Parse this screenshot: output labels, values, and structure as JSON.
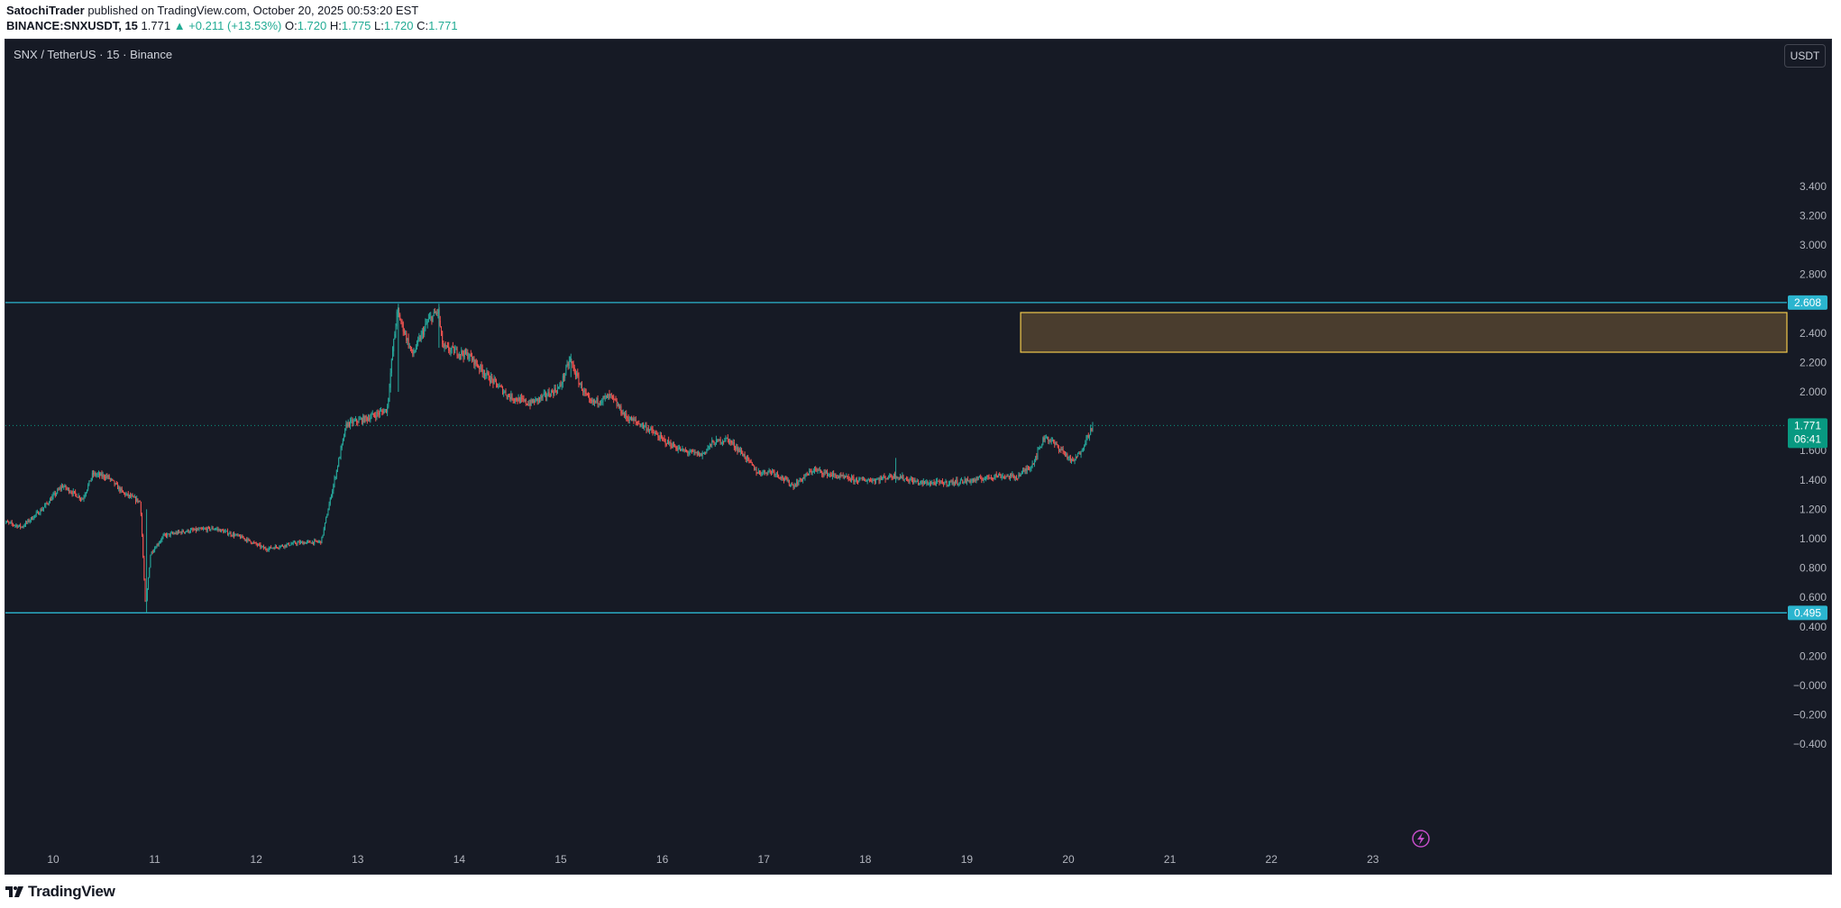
{
  "header": {
    "author": "SatochiTrader",
    "published_text": "published on TradingView.com, October 20, 2025 00:53:20 EST",
    "symbol": "BINANCE:SNXUSDT, 15",
    "last": "1.771",
    "change": "+0.211 (+13.53%)",
    "open_label": "O:",
    "open": "1.720",
    "high_label": "H:",
    "high": "1.775",
    "low_label": "L:",
    "low": "1.720",
    "close_label": "C:",
    "close": "1.771"
  },
  "chart_title": "SNX / TetherUS · 15 · Binance",
  "currency": "USDT",
  "footer": {
    "brand": "TradingView"
  },
  "colors": {
    "background": "#161a25",
    "up": "#26a69a",
    "down": "#ef5350",
    "level_line": "#2bb5cf",
    "zone_fill": "#4a3d2e",
    "zone_border": "#f2c94c",
    "last_price": "#089981",
    "grid": "#1f2331",
    "axis_text": "#b2b5be"
  },
  "icons": [
    "lightning-icon",
    "tradingview-logo-icon",
    "up-triangle-icon"
  ],
  "chart_data": {
    "type": "candlestick",
    "title": "SNX / TetherUS · 15 · Binance",
    "ylim": [
      -0.5,
      3.5
    ],
    "xlim": [
      9.5,
      23.0
    ],
    "y_ticks": [
      3.4,
      3.2,
      3.0,
      2.8,
      2.4,
      2.2,
      2.0,
      1.6,
      1.4,
      1.2,
      1.0,
      0.8,
      0.6,
      0.4,
      0.2,
      0.0,
      -0.2,
      -0.4
    ],
    "y_tick_labels": [
      "3.400",
      "3.200",
      "3.000",
      "2.800",
      "2.400",
      "2.200",
      "2.000",
      "1.600",
      "1.400",
      "1.200",
      "1.000",
      "0.800",
      "0.600",
      "0.400",
      "0.200",
      "−0.000",
      "−0.200",
      "−0.400"
    ],
    "x_ticks": [
      10,
      11,
      12,
      13,
      14,
      15,
      16,
      17,
      18,
      19,
      20,
      21,
      22,
      23
    ],
    "x_tick_labels": [
      "10",
      "11",
      "12",
      "13",
      "14",
      "15",
      "16",
      "17",
      "18",
      "19",
      "20",
      "21",
      "22",
      "23"
    ],
    "grid": false,
    "price_path": [
      [
        9.5,
        1.12
      ],
      [
        9.7,
        1.08
      ],
      [
        9.9,
        1.2
      ],
      [
        10.1,
        1.36
      ],
      [
        10.3,
        1.27
      ],
      [
        10.4,
        1.44
      ],
      [
        10.55,
        1.42
      ],
      [
        10.7,
        1.31
      ],
      [
        10.87,
        1.25
      ],
      [
        10.92,
        0.52
      ],
      [
        10.97,
        0.9
      ],
      [
        11.1,
        1.02
      ],
      [
        11.3,
        1.05
      ],
      [
        11.6,
        1.07
      ],
      [
        11.9,
        1.0
      ],
      [
        12.1,
        0.93
      ],
      [
        12.4,
        0.97
      ],
      [
        12.65,
        0.98
      ],
      [
        12.75,
        1.3
      ],
      [
        12.9,
        1.78
      ],
      [
        13.1,
        1.82
      ],
      [
        13.3,
        1.88
      ],
      [
        13.35,
        2.25
      ],
      [
        13.4,
        2.55
      ],
      [
        13.55,
        2.25
      ],
      [
        13.7,
        2.48
      ],
      [
        13.8,
        2.55
      ],
      [
        13.85,
        2.3
      ],
      [
        14.1,
        2.25
      ],
      [
        14.3,
        2.1
      ],
      [
        14.5,
        1.97
      ],
      [
        14.7,
        1.92
      ],
      [
        14.85,
        1.97
      ],
      [
        15.0,
        2.03
      ],
      [
        15.1,
        2.22
      ],
      [
        15.2,
        2.05
      ],
      [
        15.3,
        1.92
      ],
      [
        15.5,
        1.97
      ],
      [
        15.65,
        1.83
      ],
      [
        15.85,
        1.76
      ],
      [
        16.0,
        1.68
      ],
      [
        16.2,
        1.6
      ],
      [
        16.4,
        1.57
      ],
      [
        16.5,
        1.65
      ],
      [
        16.65,
        1.68
      ],
      [
        16.8,
        1.58
      ],
      [
        16.95,
        1.45
      ],
      [
        17.1,
        1.46
      ],
      [
        17.3,
        1.36
      ],
      [
        17.5,
        1.47
      ],
      [
        17.7,
        1.43
      ],
      [
        17.9,
        1.4
      ],
      [
        18.1,
        1.4
      ],
      [
        18.3,
        1.43
      ],
      [
        18.55,
        1.38
      ],
      [
        18.8,
        1.38
      ],
      [
        19.1,
        1.4
      ],
      [
        19.3,
        1.43
      ],
      [
        19.5,
        1.42
      ],
      [
        19.65,
        1.5
      ],
      [
        19.78,
        1.7
      ],
      [
        19.95,
        1.6
      ],
      [
        20.05,
        1.52
      ],
      [
        20.12,
        1.58
      ],
      [
        20.25,
        1.771
      ]
    ],
    "horizontal_levels": [
      {
        "price": 2.608,
        "label": "2.608"
      },
      {
        "price": 0.495,
        "label": "0.495"
      }
    ],
    "last_price": {
      "price": 1.771,
      "label": "1.771",
      "countdown": "06:41"
    },
    "zone": {
      "x_start": 19.53,
      "x_end": 23.0,
      "price_top": 2.54,
      "price_bottom": 2.27
    }
  }
}
